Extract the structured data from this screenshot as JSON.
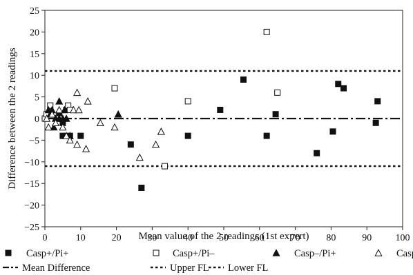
{
  "chart_data": {
    "type": "scatter",
    "title": "",
    "xlabel": "Mean value of the 2 readings (1st expert)",
    "ylabel": "Difference between the 2 readings",
    "xlim": [
      0,
      100
    ],
    "ylim": [
      -25,
      25
    ],
    "x_ticks": [
      0,
      10,
      20,
      30,
      40,
      50,
      60,
      70,
      80,
      90,
      100
    ],
    "y_ticks": [
      25,
      20,
      15,
      10,
      5,
      0,
      -5,
      -10,
      -15,
      -20,
      -25
    ],
    "y_tick_labels": [
      "25",
      "20",
      "15",
      "10",
      "5",
      "0",
      "−5",
      "−10",
      "−15",
      "−20",
      "−25"
    ],
    "grid": false,
    "legend_position": "bottom",
    "series": [
      {
        "name": "Casp+/Pi+",
        "marker": "filled-square",
        "points": [
          [
            4,
            1
          ],
          [
            5,
            -1
          ],
          [
            5,
            -4
          ],
          [
            6,
            2
          ],
          [
            7,
            -4
          ],
          [
            10,
            -4
          ],
          [
            24,
            -6
          ],
          [
            27,
            -16
          ],
          [
            40,
            -4
          ],
          [
            49,
            2
          ],
          [
            55.5,
            9
          ],
          [
            62,
            -4
          ],
          [
            64.5,
            1
          ],
          [
            76,
            -8
          ],
          [
            80.5,
            -3
          ],
          [
            82,
            8
          ],
          [
            83.5,
            7
          ],
          [
            92.5,
            -1
          ],
          [
            93,
            4
          ]
        ]
      },
      {
        "name": "Casp+/Pi–",
        "marker": "open-square",
        "points": [
          [
            0,
            0
          ],
          [
            0.5,
            1
          ],
          [
            1.5,
            3
          ],
          [
            4,
            0
          ],
          [
            6.5,
            3
          ],
          [
            7,
            2
          ],
          [
            19.5,
            7
          ],
          [
            33.5,
            -11
          ],
          [
            40,
            4
          ],
          [
            62,
            20
          ],
          [
            65,
            6
          ]
        ]
      },
      {
        "name": "Casp–/Pi+",
        "marker": "filled-triangle",
        "points": [
          [
            1,
            2
          ],
          [
            1.5,
            1
          ],
          [
            2,
            2
          ],
          [
            2.5,
            -2
          ],
          [
            3,
            0
          ],
          [
            4,
            0
          ],
          [
            4,
            4
          ],
          [
            5,
            0
          ],
          [
            5.5,
            2
          ],
          [
            6,
            0
          ],
          [
            7,
            -4
          ],
          [
            20.5,
            1
          ]
        ]
      },
      {
        "name": "Casp–/Pi–",
        "marker": "open-triangle",
        "points": [
          [
            0.5,
            0
          ],
          [
            1,
            -2
          ],
          [
            2,
            1
          ],
          [
            3,
            -1
          ],
          [
            4,
            2
          ],
          [
            5,
            -2
          ],
          [
            6,
            -4
          ],
          [
            7,
            -5
          ],
          [
            8,
            2
          ],
          [
            9,
            -6
          ],
          [
            9,
            6
          ],
          [
            9.5,
            2
          ],
          [
            11.5,
            -7
          ],
          [
            12,
            4
          ],
          [
            15.5,
            -1
          ],
          [
            19.5,
            -2
          ],
          [
            26.5,
            -9
          ],
          [
            31,
            -6
          ],
          [
            32.5,
            -3
          ]
        ]
      }
    ],
    "reference_lines": [
      {
        "name": "Mean Difference",
        "value": 0,
        "style": "dash-dot"
      },
      {
        "name": "Upper FL",
        "value": 11,
        "style": "dotted"
      },
      {
        "name": "Lower FL",
        "value": -11,
        "style": "dotted"
      }
    ]
  }
}
